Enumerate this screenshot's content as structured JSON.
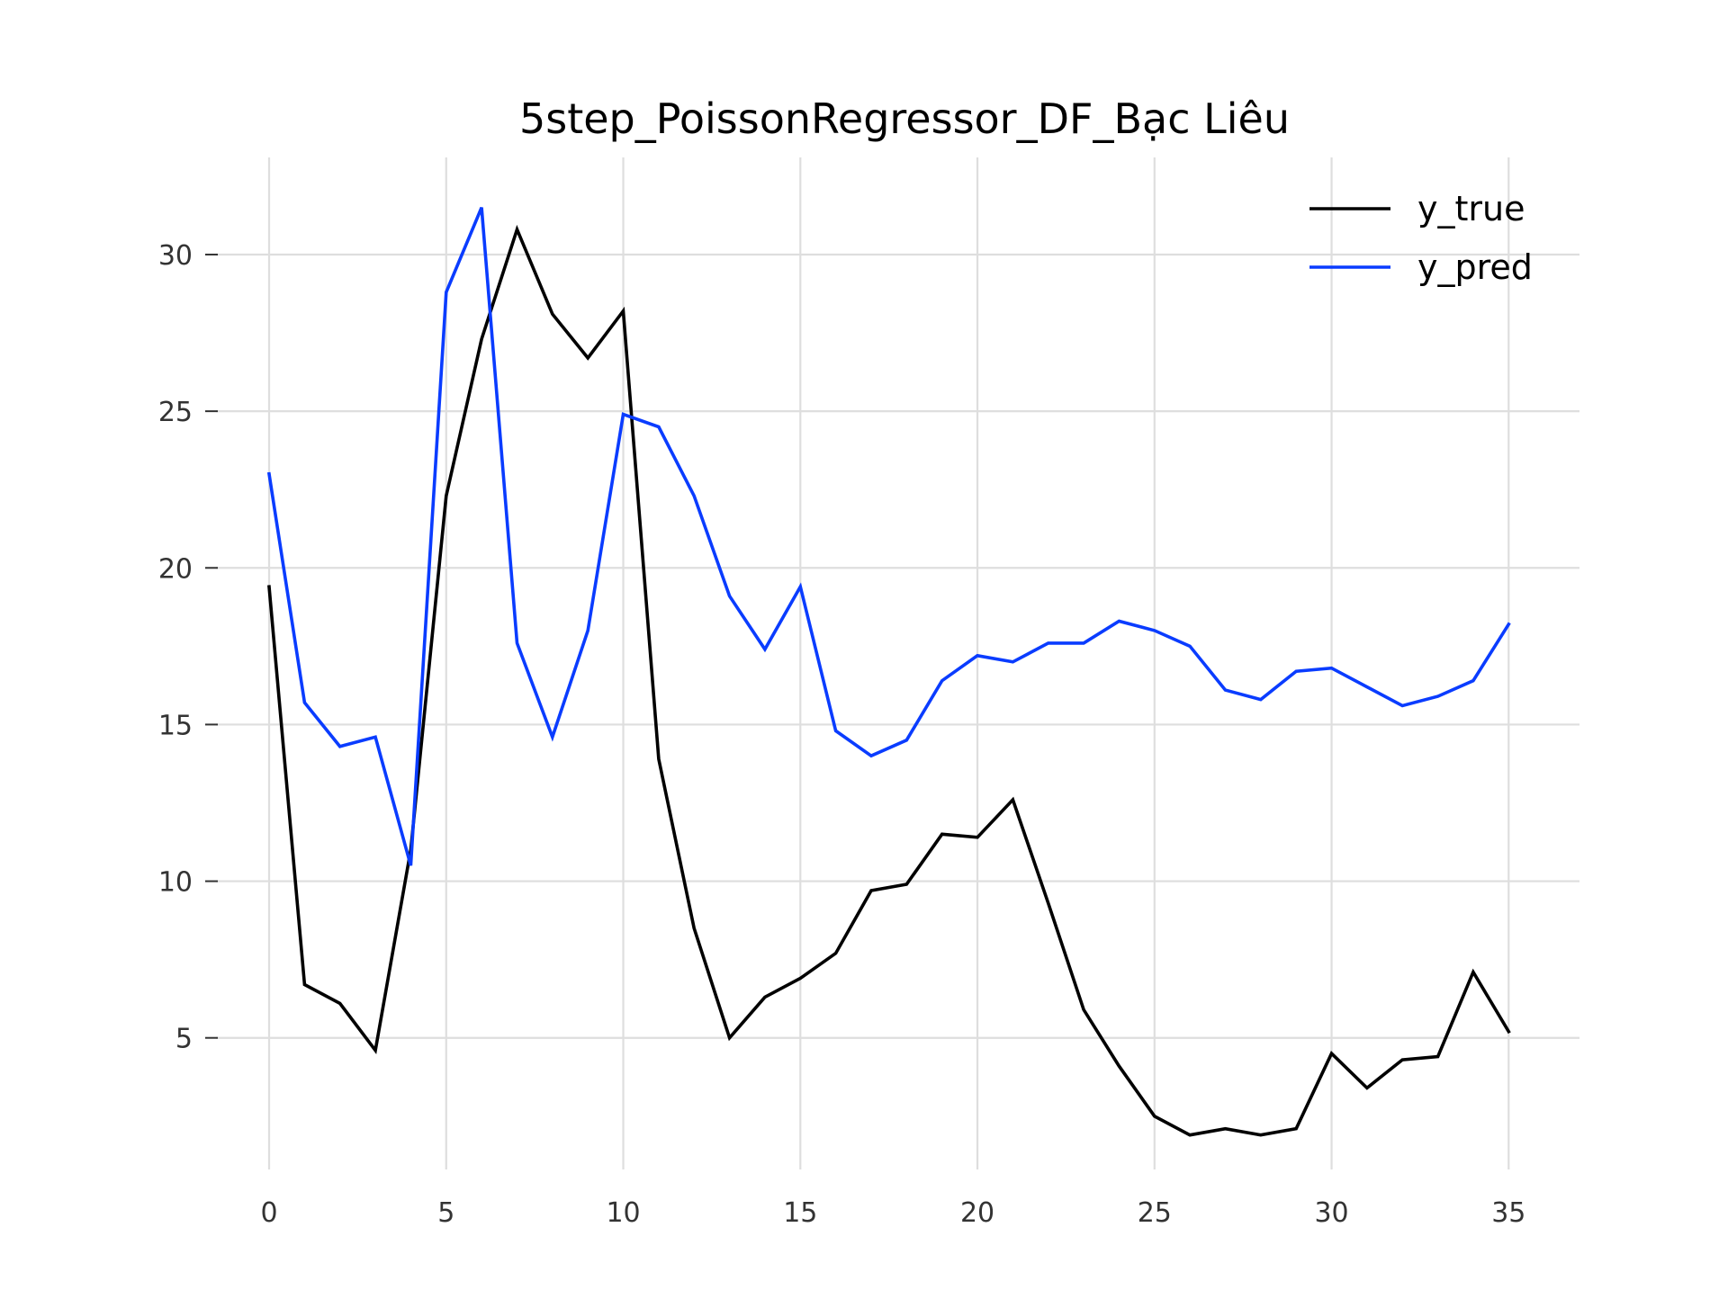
{
  "chart_data": {
    "type": "line",
    "title": "5step_PoissonRegressor_DF_Bạc Liêu",
    "xlabel": "",
    "ylabel": "",
    "x": [
      0,
      1,
      2,
      3,
      4,
      5,
      6,
      7,
      8,
      9,
      10,
      11,
      12,
      13,
      14,
      15,
      16,
      17,
      18,
      19,
      20,
      21,
      22,
      23,
      24,
      25,
      26,
      27,
      28,
      29,
      30,
      31,
      32,
      33,
      34,
      35
    ],
    "xlim": [
      -1.5,
      37
    ],
    "ylim": [
      0.8,
      33.1
    ],
    "xticks": [
      0,
      5,
      10,
      15,
      20,
      25,
      30,
      35
    ],
    "yticks": [
      5,
      10,
      15,
      20,
      25,
      30
    ],
    "grid": true,
    "legend": "top-right",
    "series": [
      {
        "name": "y_true",
        "color": "#000000",
        "values": [
          19.4,
          6.7,
          6.1,
          4.6,
          11.0,
          22.3,
          27.3,
          30.8,
          28.1,
          26.7,
          28.2,
          13.9,
          8.5,
          5.0,
          6.3,
          6.9,
          7.7,
          9.7,
          9.9,
          11.5,
          11.4,
          12.6,
          9.3,
          5.9,
          4.1,
          2.5,
          1.9,
          2.1,
          1.9,
          2.1,
          4.5,
          3.4,
          4.3,
          4.4,
          7.1,
          5.2
        ]
      },
      {
        "name": "y_pred",
        "color": "#0a3cff",
        "values": [
          23.0,
          15.7,
          14.3,
          14.6,
          10.5,
          28.8,
          31.5,
          17.6,
          14.6,
          18.0,
          24.9,
          24.5,
          22.3,
          19.1,
          17.4,
          19.4,
          14.8,
          14.0,
          14.5,
          16.4,
          17.2,
          17.0,
          17.6,
          17.6,
          18.3,
          18.0,
          17.5,
          16.1,
          15.8,
          16.7,
          16.8,
          16.2,
          15.6,
          15.9,
          16.4,
          18.2
        ]
      }
    ]
  }
}
